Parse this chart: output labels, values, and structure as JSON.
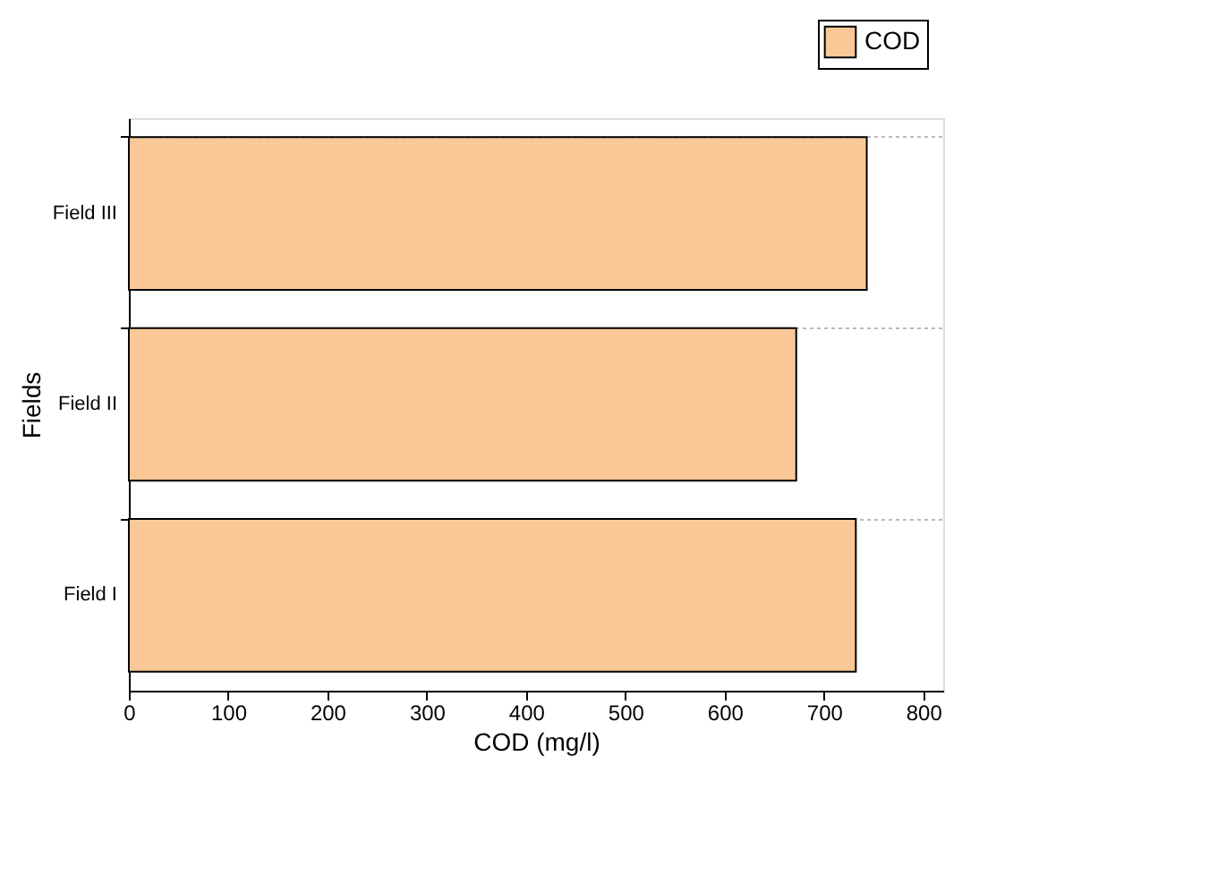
{
  "chart_data": {
    "type": "bar",
    "orientation": "horizontal",
    "xlabel": "COD (mg/l)",
    "ylabel": "Fields",
    "categories": [
      "Field III",
      "Field II",
      "Field I"
    ],
    "series": [
      {
        "name": "COD",
        "color": "#f9c896",
        "values": [
          743,
          672,
          732
        ]
      }
    ],
    "xlim": [
      0,
      820
    ],
    "xticks": [
      0,
      100,
      200,
      300,
      400,
      500,
      600,
      700,
      800
    ],
    "grid": "y",
    "legend": "top right"
  }
}
